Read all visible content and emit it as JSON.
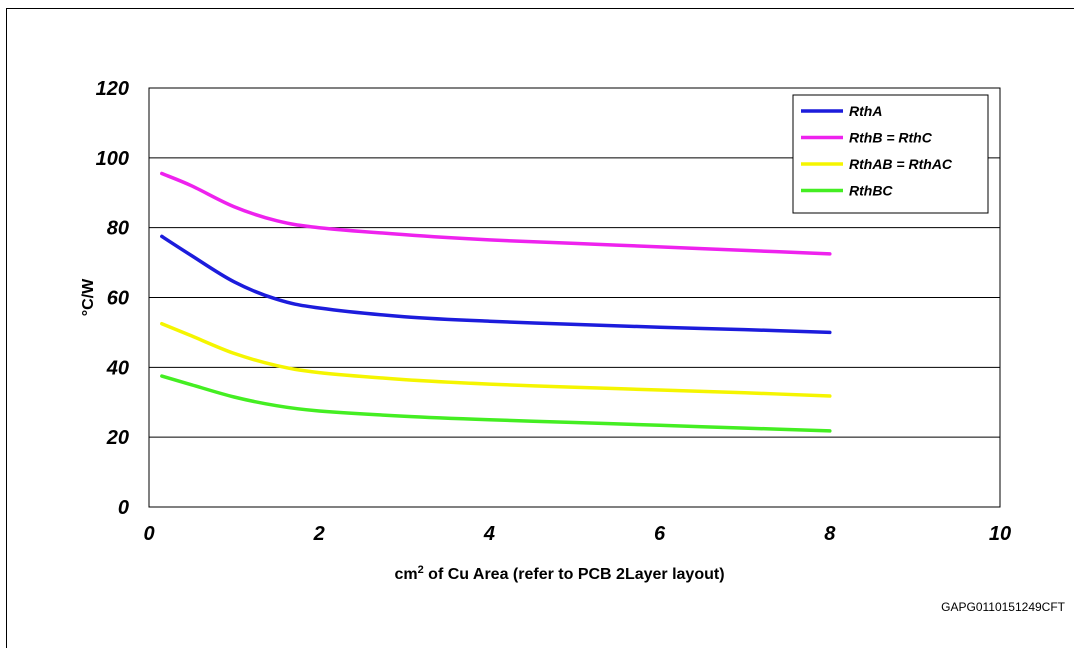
{
  "chart_data": {
    "type": "line",
    "xlabel": "cm² of Cu Area (refer to PCB 2Layer layout)",
    "ylabel": "°C/W",
    "xlim": [
      0,
      10
    ],
    "ylim": [
      0,
      120
    ],
    "x_ticks": [
      "0",
      "2",
      "4",
      "6",
      "8",
      "10"
    ],
    "y_ticks": [
      "0",
      "20",
      "40",
      "60",
      "80",
      "100",
      "120"
    ],
    "grid": "horizontal",
    "legend_position": "top-right",
    "series": [
      {
        "name": "RthA",
        "color": "#1c1cdc",
        "points": [
          [
            0.15,
            77.5
          ],
          [
            0.5,
            72
          ],
          [
            1.0,
            64.5
          ],
          [
            1.5,
            59.5
          ],
          [
            2.0,
            57
          ],
          [
            3.0,
            54.5
          ],
          [
            4.0,
            53.2
          ],
          [
            5.0,
            52.3
          ],
          [
            6.0,
            51.5
          ],
          [
            7.0,
            50.8
          ],
          [
            8.0,
            50
          ]
        ]
      },
      {
        "name": "RthB = RthC",
        "color": "#ee22ee",
        "points": [
          [
            0.15,
            95.5
          ],
          [
            0.5,
            92
          ],
          [
            1.0,
            86
          ],
          [
            1.5,
            82
          ],
          [
            2.0,
            80
          ],
          [
            3.0,
            78
          ],
          [
            4.0,
            76.5
          ],
          [
            5.0,
            75.5
          ],
          [
            6.0,
            74.5
          ],
          [
            7.0,
            73.5
          ],
          [
            8.0,
            72.5
          ]
        ]
      },
      {
        "name": "RthAB = RthAC",
        "color": "#f5f500",
        "points": [
          [
            0.15,
            52.5
          ],
          [
            0.5,
            49
          ],
          [
            1.0,
            44
          ],
          [
            1.5,
            40.5
          ],
          [
            2.0,
            38.5
          ],
          [
            3.0,
            36.5
          ],
          [
            4.0,
            35.2
          ],
          [
            5.0,
            34.3
          ],
          [
            6.0,
            33.5
          ],
          [
            7.0,
            32.7
          ],
          [
            8.0,
            31.8
          ]
        ]
      },
      {
        "name": "RthBC",
        "color": "#44ee22",
        "points": [
          [
            0.15,
            37.5
          ],
          [
            0.5,
            35
          ],
          [
            1.0,
            31.5
          ],
          [
            1.5,
            29
          ],
          [
            2.0,
            27.5
          ],
          [
            3.0,
            26
          ],
          [
            4.0,
            25
          ],
          [
            5.0,
            24.2
          ],
          [
            6.0,
            23.4
          ],
          [
            7.0,
            22.6
          ],
          [
            8.0,
            21.8
          ]
        ]
      }
    ]
  },
  "figure_code": "GAPG0110151249CFT"
}
